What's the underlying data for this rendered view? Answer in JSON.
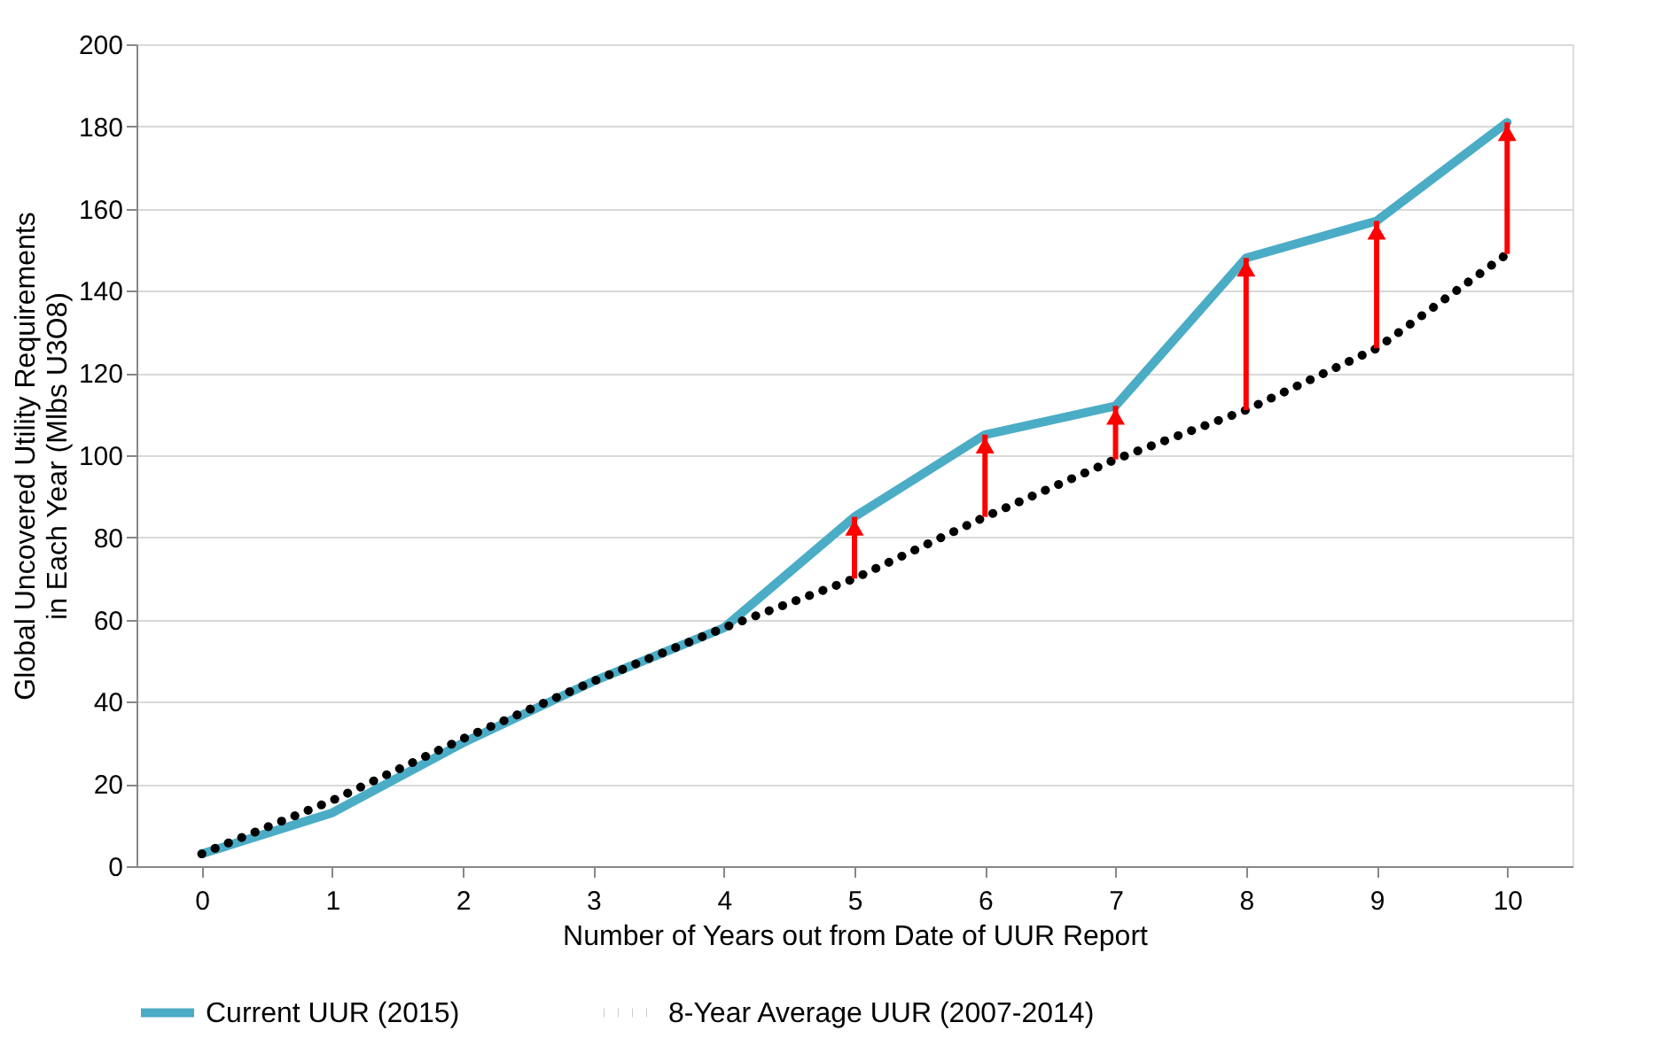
{
  "chart_data": {
    "type": "line",
    "xlabel": "Number of Years out from Date of UUR Report",
    "ylabel": "Global Uncovered Utility Requirements  in Each Year (Mlbs U3O8)",
    "categories": [
      "0",
      "1",
      "2",
      "3",
      "4",
      "5",
      "6",
      "7",
      "8",
      "9",
      "10"
    ],
    "series": [
      {
        "name": "Current UUR (2015)",
        "color": "#4bacc6",
        "line_style": "solid",
        "values": [
          3,
          13,
          30,
          45,
          58,
          85,
          105,
          112,
          148,
          157,
          181
        ]
      },
      {
        "name": "8-Year Average UUR (2007-2014)",
        "color": "#000000",
        "line_style": "dotted",
        "values": [
          3,
          16,
          31,
          45,
          58,
          70,
          85,
          99,
          111,
          126,
          149
        ]
      }
    ],
    "ylim": [
      0,
      200
    ],
    "yticks": [
      0,
      20,
      40,
      60,
      80,
      100,
      120,
      140,
      160,
      180,
      200
    ],
    "grid": "y",
    "legend": "bottom",
    "marker": "none"
  }
}
